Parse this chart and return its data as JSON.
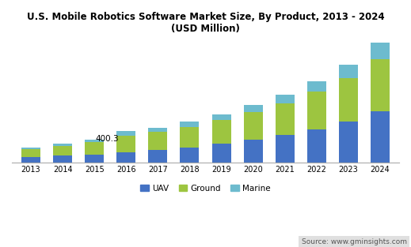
{
  "title": "U.S. Mobile Robotics Software Market Size, By Product, 2013 - 2024\n(USD Million)",
  "years": [
    2013,
    2014,
    2015,
    2016,
    2017,
    2018,
    2019,
    2020,
    2021,
    2022,
    2023,
    2024
  ],
  "uav": [
    70,
    90,
    105,
    130,
    160,
    195,
    240,
    290,
    355,
    430,
    530,
    660
  ],
  "ground": [
    100,
    125,
    155,
    215,
    230,
    265,
    305,
    355,
    405,
    480,
    560,
    670
  ],
  "marine": [
    25,
    32,
    38,
    55,
    55,
    65,
    75,
    90,
    110,
    135,
    170,
    210
  ],
  "annotation_year": 2016,
  "annotation_text": "400.3",
  "uav_color": "#4472c4",
  "ground_color": "#9dc540",
  "marine_color": "#6dbbce",
  "background_color": "#ffffff",
  "source_text": "Source: www.gminsights.com",
  "source_bg": "#e0e0e0",
  "ylim": [
    0,
    1600
  ],
  "legend_labels": [
    "UAV",
    "Ground",
    "Marine"
  ]
}
